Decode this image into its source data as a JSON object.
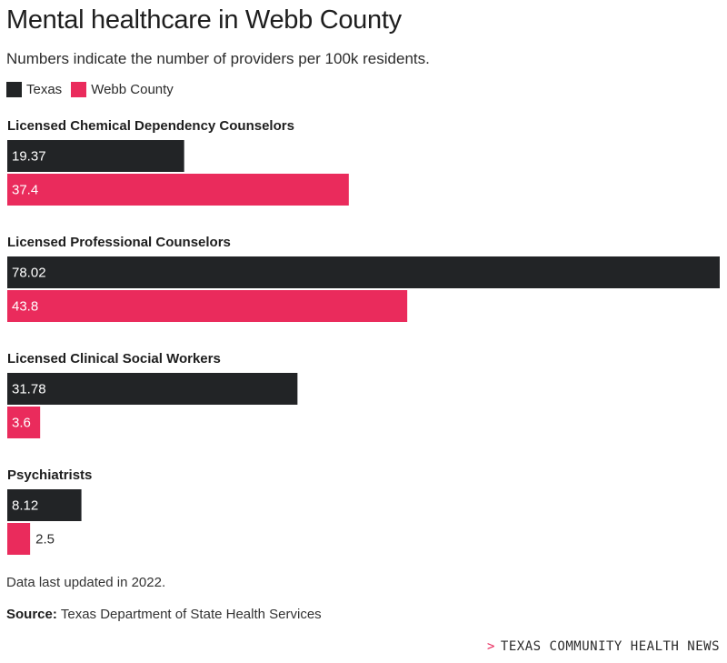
{
  "chart_data": {
    "type": "bar",
    "orientation": "horizontal",
    "title": "Mental healthcare in Webb County",
    "subtitle": "Numbers indicate the number of providers per 100k residents.",
    "categories": [
      "Licensed Chemical Dependency Counselors",
      "Licensed Professional Counselors",
      "Licensed Clinical Social Workers",
      "Psychiatrists"
    ],
    "series": [
      {
        "name": "Texas",
        "color": "#222426",
        "values": [
          19.37,
          78.02,
          31.78,
          8.12
        ]
      },
      {
        "name": "Webb County",
        "color": "#ea2b5c",
        "values": [
          37.4,
          43.8,
          3.6,
          2.5
        ]
      }
    ],
    "value_labels": {
      "Texas": [
        "19.37",
        "78.02",
        "31.78",
        "8.12"
      ],
      "Webb County": [
        "37.4",
        "43.8",
        "3.6",
        "2.5"
      ]
    },
    "xlim": [
      0,
      78.02
    ],
    "grid": false,
    "legend": "top-left"
  },
  "legend": [
    {
      "label": "Texas",
      "color": "#222426"
    },
    {
      "label": "Webb County",
      "color": "#ea2b5c"
    }
  ],
  "footer": {
    "note": "Data last updated in 2022.",
    "source_label": "Source:",
    "source_text": "Texas Department of State Health Services",
    "brand_caret": ">",
    "brand": "TEXAS COMMUNITY HEALTH NEWS"
  }
}
